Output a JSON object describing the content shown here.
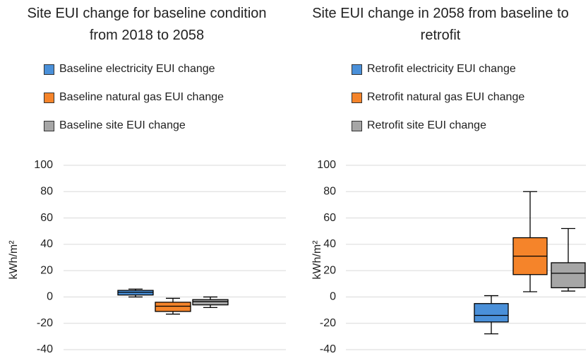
{
  "chart_data": [
    {
      "type": "box",
      "title": "Site EUI change for baseline condition from 2018 to 2058",
      "ylabel": "kWh/m²",
      "ylim": [
        -40,
        100
      ],
      "yticks": [
        -40,
        -20,
        0,
        20,
        40,
        60,
        80,
        100
      ],
      "grid": true,
      "series": [
        {
          "name": "Baseline electricity EUI change",
          "color": "#4a90d9",
          "min": 0,
          "q1": 1.5,
          "median": 3.5,
          "q3": 5,
          "max": 6
        },
        {
          "name": "Baseline natural gas EUI change",
          "color": "#f5842a",
          "min": -13,
          "q1": -11,
          "median": -7,
          "q3": -4,
          "max": -1
        },
        {
          "name": "Baseline site EUI change",
          "color": "#a6a6a6",
          "min": -8,
          "q1": -6,
          "median": -3.5,
          "q3": -2,
          "max": 0
        }
      ]
    },
    {
      "type": "box",
      "title": "Site EUI change in 2058 from baseline to retrofit",
      "ylabel": "kWh/m²",
      "ylim": [
        -40,
        100
      ],
      "yticks": [
        -40,
        -20,
        0,
        20,
        40,
        60,
        80,
        100
      ],
      "grid": true,
      "series": [
        {
          "name": "Retrofit electricity EUI change",
          "color": "#4a90d9",
          "min": -28,
          "q1": -19,
          "median": -14,
          "q3": -5,
          "max": 1
        },
        {
          "name": "Retrofit natural gas EUI change",
          "color": "#f5842a",
          "min": 4,
          "q1": 17,
          "median": 31,
          "q3": 45,
          "max": 80
        },
        {
          "name": "Retrofit site EUI change",
          "color": "#a6a6a6",
          "min": 4.5,
          "q1": 7,
          "median": 18,
          "q3": 26,
          "max": 52
        }
      ]
    }
  ]
}
